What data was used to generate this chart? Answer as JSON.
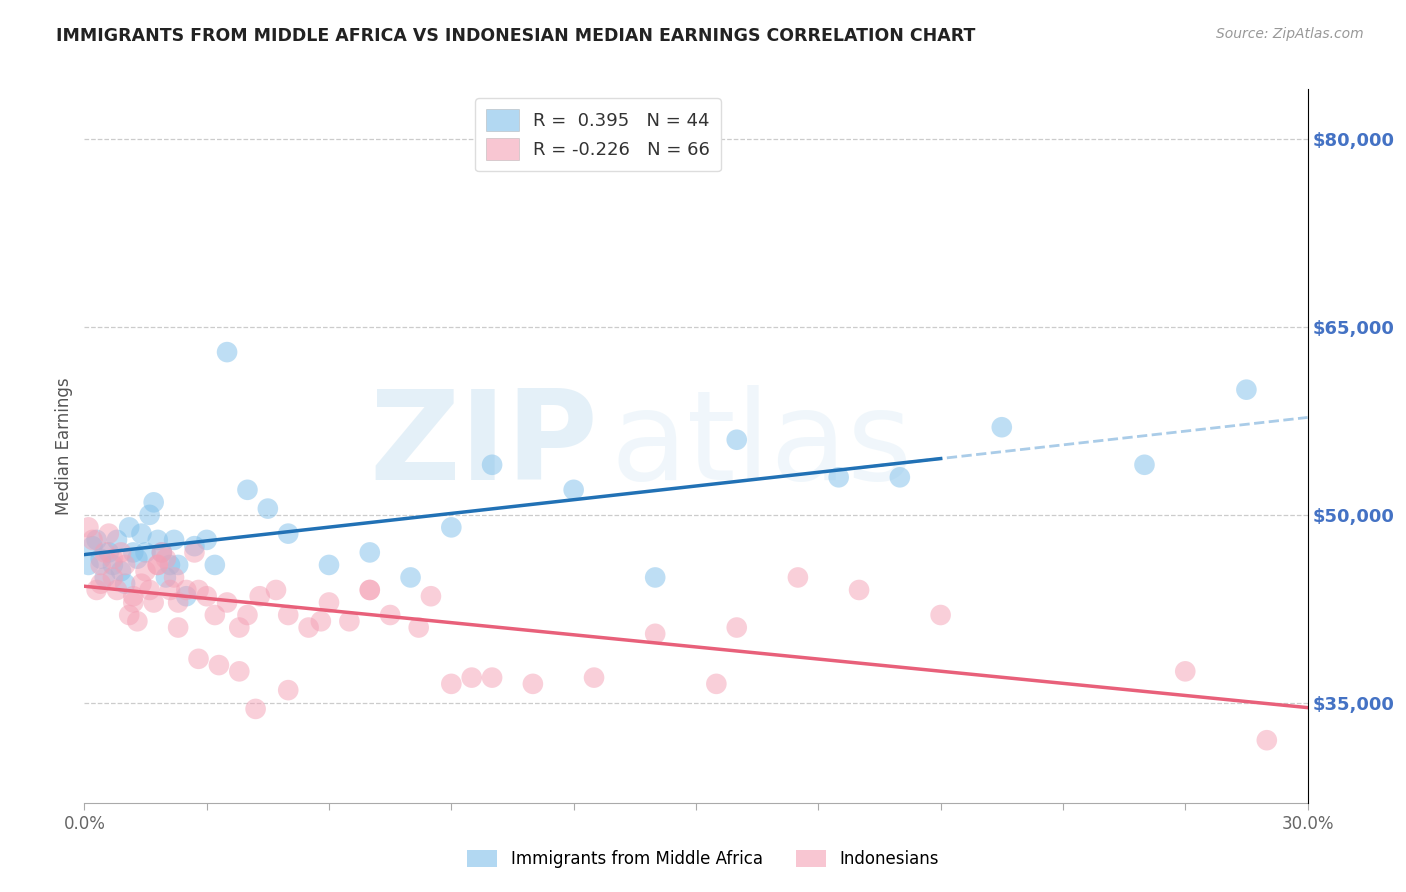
{
  "title": "IMMIGRANTS FROM MIDDLE AFRICA VS INDONESIAN MEDIAN EARNINGS CORRELATION CHART",
  "source": "Source: ZipAtlas.com",
  "ylabel": "Median Earnings",
  "y_ticks": [
    35000,
    50000,
    65000,
    80000
  ],
  "y_tick_labels": [
    "$35,000",
    "$50,000",
    "$65,000",
    "$80,000"
  ],
  "x_min": 0.0,
  "x_max": 0.3,
  "y_min": 27000,
  "y_max": 84000,
  "label1": "Immigrants from Middle Africa",
  "label2": "Indonesians",
  "color_blue": "#7fbfea",
  "color_pink": "#f4a0b5",
  "color_blue_line": "#2171b5",
  "color_pink_line": "#e8607a",
  "color_dashed": "#aacce8",
  "watermark_zip": "ZIP",
  "watermark_atlas": "atlas",
  "blue_x": [
    0.001,
    0.002,
    0.003,
    0.004,
    0.005,
    0.006,
    0.007,
    0.008,
    0.009,
    0.01,
    0.011,
    0.012,
    0.013,
    0.014,
    0.015,
    0.016,
    0.017,
    0.018,
    0.019,
    0.02,
    0.021,
    0.022,
    0.023,
    0.025,
    0.027,
    0.03,
    0.032,
    0.035,
    0.04,
    0.045,
    0.05,
    0.06,
    0.07,
    0.08,
    0.09,
    0.1,
    0.12,
    0.14,
    0.16,
    0.185,
    0.2,
    0.225,
    0.26,
    0.285
  ],
  "blue_y": [
    46000,
    47500,
    48000,
    46500,
    45000,
    47000,
    46000,
    48000,
    45500,
    44500,
    49000,
    47000,
    46500,
    48500,
    47000,
    50000,
    51000,
    48000,
    47000,
    45000,
    46000,
    48000,
    46000,
    43500,
    47500,
    48000,
    46000,
    63000,
    52000,
    50500,
    48500,
    46000,
    47000,
    45000,
    49000,
    54000,
    52000,
    45000,
    56000,
    53000,
    53000,
    57000,
    54000,
    60000
  ],
  "pink_x": [
    0.001,
    0.002,
    0.003,
    0.004,
    0.005,
    0.006,
    0.007,
    0.008,
    0.009,
    0.01,
    0.011,
    0.012,
    0.013,
    0.014,
    0.015,
    0.016,
    0.017,
    0.018,
    0.019,
    0.02,
    0.021,
    0.022,
    0.023,
    0.025,
    0.027,
    0.028,
    0.03,
    0.032,
    0.035,
    0.038,
    0.04,
    0.043,
    0.047,
    0.05,
    0.055,
    0.06,
    0.065,
    0.07,
    0.075,
    0.085,
    0.09,
    0.1,
    0.11,
    0.125,
    0.14,
    0.155,
    0.16,
    0.175,
    0.19,
    0.21,
    0.004,
    0.007,
    0.012,
    0.018,
    0.023,
    0.028,
    0.033,
    0.038,
    0.042,
    0.05,
    0.058,
    0.07,
    0.082,
    0.095,
    0.27,
    0.29
  ],
  "pink_y": [
    49000,
    48000,
    44000,
    44500,
    47000,
    48500,
    45000,
    44000,
    47000,
    46000,
    42000,
    43500,
    41500,
    44500,
    45500,
    44000,
    43000,
    46000,
    47000,
    46500,
    44000,
    45000,
    43000,
    44000,
    47000,
    44000,
    43500,
    42000,
    43000,
    41000,
    42000,
    43500,
    44000,
    42000,
    41000,
    43000,
    41500,
    44000,
    42000,
    43500,
    36500,
    37000,
    36500,
    37000,
    40500,
    36500,
    41000,
    45000,
    44000,
    42000,
    46000,
    46500,
    43000,
    46000,
    41000,
    38500,
    38000,
    37500,
    34500,
    36000,
    41500,
    44000,
    41000,
    37000,
    37500,
    32000
  ]
}
